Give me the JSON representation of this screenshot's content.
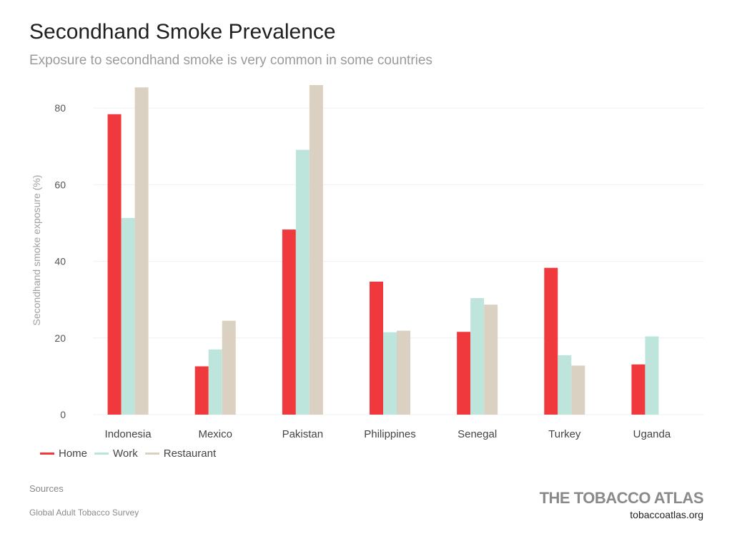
{
  "header": {
    "title": "Secondhand Smoke Prevalence",
    "subtitle": "Exposure to secondhand smoke is very common in some countries"
  },
  "chart_data": {
    "type": "bar",
    "categories": [
      "Indonesia",
      "Mexico",
      "Pakistan",
      "Philippines",
      "Senegal",
      "Turkey",
      "Uganda"
    ],
    "series": [
      {
        "name": "Home",
        "color": "#f0393c",
        "values": [
          78.4,
          12.6,
          48.3,
          34.7,
          21.6,
          38.3,
          13.1
        ]
      },
      {
        "name": "Work",
        "color": "#bde5dc",
        "values": [
          51.3,
          17.0,
          69.1,
          21.5,
          30.4,
          15.5,
          20.4
        ]
      },
      {
        "name": "Restaurant",
        "color": "#dbd1c3",
        "values": [
          85.4,
          24.5,
          86.0,
          21.9,
          28.7,
          12.8,
          null
        ]
      }
    ],
    "ylabel": "Secondhand smoke exposure (%)",
    "ylim": [
      0,
      86
    ],
    "yticks": [
      0,
      20,
      40,
      60,
      80
    ],
    "grid": true,
    "legend": "bottom-left"
  },
  "footer": {
    "sources_label": "Sources",
    "sources_text": "Global Adult Tobacco Survey",
    "brand": "THE TOBACCO ATLAS",
    "brand_url": "tobaccoatlas.org"
  }
}
